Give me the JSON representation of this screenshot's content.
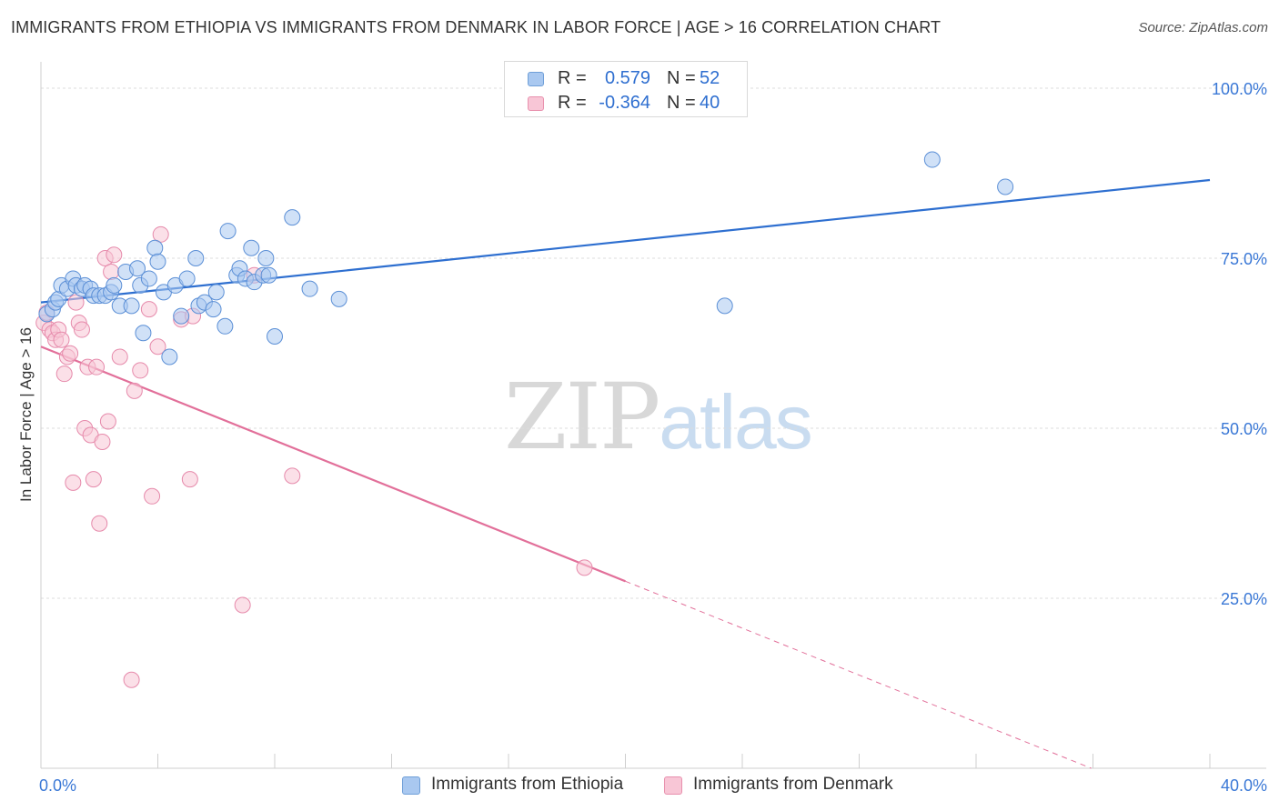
{
  "header": {
    "title": "IMMIGRANTS FROM ETHIOPIA VS IMMIGRANTS FROM DENMARK IN LABOR FORCE | AGE > 16 CORRELATION CHART",
    "source": "Source: ZipAtlas.com"
  },
  "watermark": {
    "zip": "ZIP",
    "atlas": "atlas"
  },
  "legend": {
    "rows": [
      {
        "r_label": "R =",
        "r_value": "0.579",
        "n_label": "N =",
        "n_value": "52",
        "color": "#a9c8f0",
        "border": "#6f9fd8"
      },
      {
        "r_label": "R =",
        "r_value": "-0.364",
        "n_label": "N =",
        "n_value": "40",
        "color": "#f8c6d6",
        "border": "#e890ad"
      }
    ],
    "value_color": "#2f6fd0"
  },
  "bottom_legend": [
    {
      "label": "Immigrants from Ethiopia",
      "color": "#a9c8f0",
      "border": "#6f9fd8"
    },
    {
      "label": "Immigrants from Denmark",
      "color": "#f8c6d6",
      "border": "#e890ad"
    }
  ],
  "chart_data": {
    "type": "scatter",
    "title": "IMMIGRANTS FROM ETHIOPIA VS IMMIGRANTS FROM DENMARK IN LABOR FORCE | AGE > 16 CORRELATION CHART",
    "xlabel": "",
    "ylabel": "In Labor Force | Age > 16",
    "xlim": [
      0,
      40
    ],
    "ylim": [
      0,
      105
    ],
    "x_tick_labels": {
      "left": "0.0%",
      "right": "40.0%"
    },
    "y_ticks": [
      {
        "value": 25,
        "label": "25.0%"
      },
      {
        "value": 50,
        "label": "50.0%"
      },
      {
        "value": 75,
        "label": "75.0%"
      },
      {
        "value": 100,
        "label": "100.0%"
      }
    ],
    "grid": true,
    "legend_position": "top-center",
    "colors": {
      "ethiopia_fill": "#a9c8f0",
      "ethiopia_stroke": "#5b8fd6",
      "ethiopia_line": "#2e6fd0",
      "denmark_fill": "#f8c6d6",
      "denmark_stroke": "#e68aab",
      "denmark_line": "#e2709a",
      "tick_label": "#3a78d6"
    },
    "series": [
      {
        "name": "Immigrants from Ethiopia",
        "r": 0.579,
        "n": 52,
        "trend": {
          "x0": 0,
          "y0": 68.5,
          "x1": 40,
          "y1": 86.5,
          "solid_to": 40
        },
        "points": [
          [
            0.2,
            66.8
          ],
          [
            0.4,
            67.5
          ],
          [
            0.5,
            68.5
          ],
          [
            0.6,
            69.0
          ],
          [
            0.7,
            71.0
          ],
          [
            0.9,
            70.5
          ],
          [
            1.1,
            72.0
          ],
          [
            1.2,
            71.0
          ],
          [
            1.4,
            70.5
          ],
          [
            1.5,
            71.0
          ],
          [
            1.7,
            70.5
          ],
          [
            1.8,
            69.5
          ],
          [
            2.0,
            69.5
          ],
          [
            2.2,
            69.5
          ],
          [
            2.4,
            70.0
          ],
          [
            2.5,
            71.0
          ],
          [
            2.7,
            68.0
          ],
          [
            2.9,
            73.0
          ],
          [
            3.1,
            68.0
          ],
          [
            3.3,
            73.5
          ],
          [
            3.4,
            71.0
          ],
          [
            3.5,
            64.0
          ],
          [
            3.7,
            72.0
          ],
          [
            3.9,
            76.5
          ],
          [
            4.0,
            74.5
          ],
          [
            4.2,
            70.0
          ],
          [
            4.4,
            60.5
          ],
          [
            4.6,
            71.0
          ],
          [
            4.8,
            66.5
          ],
          [
            5.0,
            72.0
          ],
          [
            5.3,
            75.0
          ],
          [
            5.4,
            68.0
          ],
          [
            5.6,
            68.5
          ],
          [
            5.9,
            67.5
          ],
          [
            6.0,
            70.0
          ],
          [
            6.3,
            65.0
          ],
          [
            6.4,
            79.0
          ],
          [
            6.7,
            72.5
          ],
          [
            6.8,
            73.5
          ],
          [
            7.0,
            72.0
          ],
          [
            7.2,
            76.5
          ],
          [
            7.3,
            71.5
          ],
          [
            7.6,
            72.5
          ],
          [
            7.7,
            75.0
          ],
          [
            7.8,
            72.5
          ],
          [
            8.0,
            63.5
          ],
          [
            8.6,
            81.0
          ],
          [
            9.2,
            70.5
          ],
          [
            10.2,
            69.0
          ],
          [
            23.4,
            68.0
          ],
          [
            30.5,
            89.5
          ],
          [
            33.0,
            85.5
          ]
        ]
      },
      {
        "name": "Immigrants from Denmark",
        "r": -0.364,
        "n": 40,
        "trend": {
          "x0": 0,
          "y0": 62.0,
          "x1": 40,
          "y1": -7.0,
          "solid_to": 20.0
        },
        "points": [
          [
            0.1,
            65.5
          ],
          [
            0.2,
            67.0
          ],
          [
            0.3,
            64.5
          ],
          [
            0.4,
            64.0
          ],
          [
            0.5,
            63.0
          ],
          [
            0.6,
            64.5
          ],
          [
            0.7,
            63.0
          ],
          [
            0.8,
            58.0
          ],
          [
            0.9,
            60.5
          ],
          [
            1.0,
            61.0
          ],
          [
            1.1,
            42.0
          ],
          [
            1.2,
            68.5
          ],
          [
            1.3,
            65.5
          ],
          [
            1.4,
            64.5
          ],
          [
            1.5,
            50.0
          ],
          [
            1.6,
            59.0
          ],
          [
            1.7,
            49.0
          ],
          [
            1.8,
            42.5
          ],
          [
            1.9,
            59.0
          ],
          [
            2.0,
            36.0
          ],
          [
            2.1,
            48.0
          ],
          [
            2.2,
            75.0
          ],
          [
            2.3,
            51.0
          ],
          [
            2.4,
            73.0
          ],
          [
            2.5,
            75.5
          ],
          [
            2.7,
            60.5
          ],
          [
            3.1,
            13.0
          ],
          [
            3.2,
            55.5
          ],
          [
            3.4,
            58.5
          ],
          [
            3.7,
            67.5
          ],
          [
            3.8,
            40.0
          ],
          [
            4.0,
            62.0
          ],
          [
            4.1,
            78.5
          ],
          [
            4.8,
            66.0
          ],
          [
            5.1,
            42.5
          ],
          [
            5.2,
            66.5
          ],
          [
            6.9,
            24.0
          ],
          [
            7.3,
            72.5
          ],
          [
            8.6,
            43.0
          ],
          [
            18.6,
            29.5
          ]
        ]
      }
    ]
  }
}
